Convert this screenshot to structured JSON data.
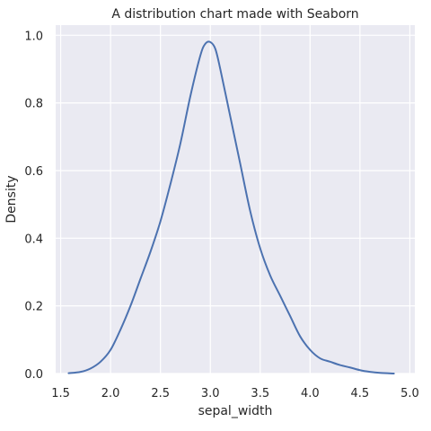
{
  "chart_data": {
    "type": "line",
    "title": "A distribution chart made with Seaborn",
    "xlabel": "sepal_width",
    "ylabel": "Density",
    "xlim": [
      1.45,
      5.05
    ],
    "ylim": [
      0,
      1.03
    ],
    "xticks": [
      "1.5",
      "2.0",
      "2.5",
      "3.0",
      "3.5",
      "4.0",
      "4.5",
      "5.0"
    ],
    "yticks": [
      "0.0",
      "0.2",
      "0.4",
      "0.6",
      "0.8",
      "1.0"
    ],
    "grid": true,
    "line_color": "#4c72b0",
    "background_color": "#eaeaf2",
    "series": [
      {
        "x": [
          1.58,
          1.7,
          1.8,
          1.9,
          2.0,
          2.1,
          2.2,
          2.3,
          2.4,
          2.5,
          2.6,
          2.7,
          2.8,
          2.9,
          2.95,
          3.0,
          3.05,
          3.1,
          3.2,
          3.3,
          3.4,
          3.5,
          3.6,
          3.7,
          3.8,
          3.9,
          4.0,
          4.1,
          4.2,
          4.3,
          4.4,
          4.5,
          4.6,
          4.7,
          4.84
        ],
        "y": [
          0.001,
          0.005,
          0.015,
          0.035,
          0.07,
          0.13,
          0.2,
          0.28,
          0.36,
          0.45,
          0.56,
          0.68,
          0.82,
          0.94,
          0.975,
          0.98,
          0.96,
          0.9,
          0.76,
          0.62,
          0.48,
          0.37,
          0.29,
          0.23,
          0.17,
          0.11,
          0.07,
          0.045,
          0.035,
          0.025,
          0.018,
          0.01,
          0.005,
          0.002,
          0.0
        ]
      }
    ]
  }
}
